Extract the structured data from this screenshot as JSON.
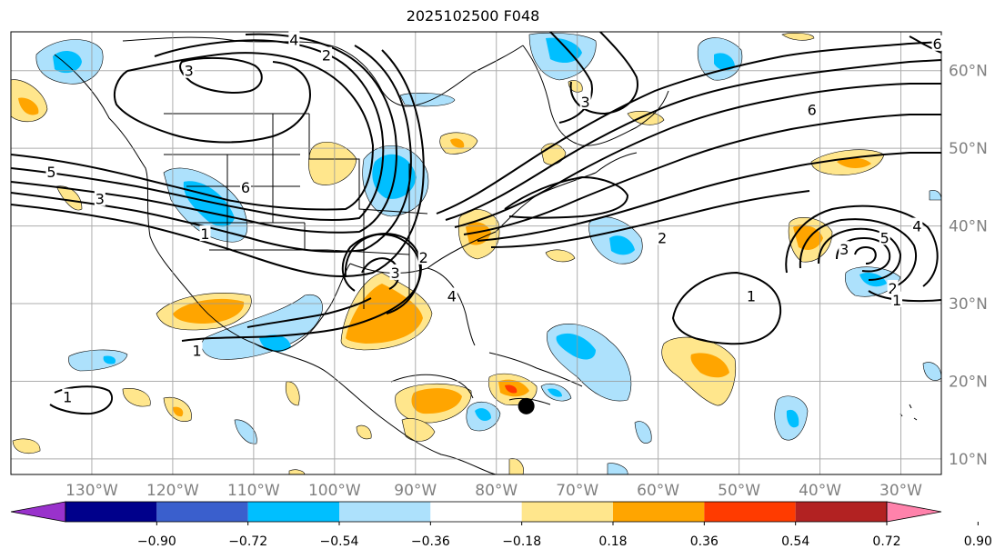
{
  "title": "2025102500 F048",
  "map": {
    "lon_range": [
      -140,
      -25
    ],
    "lat_range": [
      8,
      65
    ],
    "lon_ticks": [
      {
        "lon": -130,
        "label": "130°W"
      },
      {
        "lon": -120,
        "label": "120°W"
      },
      {
        "lon": -110,
        "label": "110°W"
      },
      {
        "lon": -100,
        "label": "100°W"
      },
      {
        "lon": -90,
        "label": "90°W"
      },
      {
        "lon": -80,
        "label": "80°W"
      },
      {
        "lon": -70,
        "label": "70°W"
      },
      {
        "lon": -60,
        "label": "60°W"
      },
      {
        "lon": -50,
        "label": "50°W"
      },
      {
        "lon": -40,
        "label": "40°W"
      },
      {
        "lon": -30,
        "label": "30°W"
      }
    ],
    "lat_ticks": [
      {
        "lat": 60,
        "label": "60°N"
      },
      {
        "lat": 50,
        "label": "50°N"
      },
      {
        "lat": 40,
        "label": "40°N"
      },
      {
        "lat": 30,
        "label": "30°N"
      },
      {
        "lat": 20,
        "label": "20°N"
      },
      {
        "lat": 10,
        "label": "10°N"
      }
    ],
    "grid": true,
    "marker": {
      "lon": -76.3,
      "lat": 16.8,
      "color": "#000000"
    }
  },
  "colorbar": {
    "colors": [
      "#9932cc",
      "#00008b",
      "#3a5fcd",
      "#00bfff",
      "#ade1fc",
      "#ffffff",
      "#ffe68c",
      "#ffa500",
      "#ff3b00",
      "#b22222",
      "#ff82ab"
    ],
    "ticks": [
      "−0.90",
      "−0.72",
      "−0.54",
      "−0.36",
      "−0.18",
      "0.18",
      "0.36",
      "0.54",
      "0.72",
      "0.90"
    ],
    "extend": "both"
  },
  "contour_labels": [
    {
      "text": "3",
      "lon": -118,
      "lat": 60
    },
    {
      "text": "4",
      "lon": -105,
      "lat": 64
    },
    {
      "text": "2",
      "lon": -101,
      "lat": 62
    },
    {
      "text": "5",
      "lon": -135,
      "lat": 47
    },
    {
      "text": "3",
      "lon": -129,
      "lat": 43.5
    },
    {
      "text": "6",
      "lon": -111,
      "lat": 45
    },
    {
      "text": "1",
      "lon": -116,
      "lat": 39
    },
    {
      "text": "2",
      "lon": -89,
      "lat": 36
    },
    {
      "text": "3",
      "lon": -92.5,
      "lat": 34
    },
    {
      "text": "4",
      "lon": -85.5,
      "lat": 31
    },
    {
      "text": "1",
      "lon": -133,
      "lat": 18
    },
    {
      "text": "1",
      "lon": -117,
      "lat": 24
    },
    {
      "text": "3",
      "lon": -69,
      "lat": 56
    },
    {
      "text": "2",
      "lon": -59.5,
      "lat": 38.5
    },
    {
      "text": "6",
      "lon": -25.5,
      "lat": 63.5
    },
    {
      "text": "6",
      "lon": -41,
      "lat": 55
    },
    {
      "text": "1",
      "lon": -48.5,
      "lat": 31
    },
    {
      "text": "3",
      "lon": -37,
      "lat": 37
    },
    {
      "text": "5",
      "lon": -32,
      "lat": 38.5
    },
    {
      "text": "4",
      "lon": -28,
      "lat": 40
    },
    {
      "text": "2",
      "lon": -31,
      "lat": 32
    },
    {
      "text": "1",
      "lon": -30.5,
      "lat": 30.5
    }
  ]
}
